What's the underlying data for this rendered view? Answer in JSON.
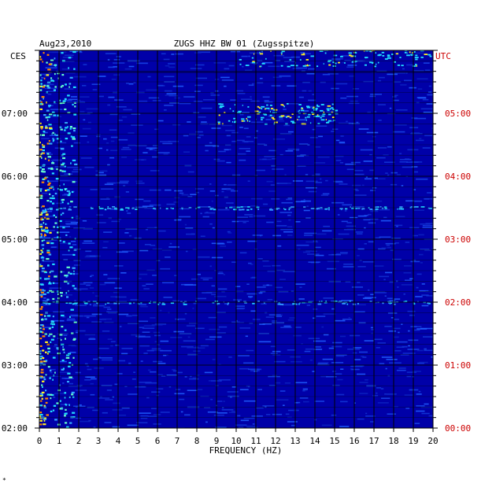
{
  "header": {
    "date": "Aug23,2010",
    "station": "ZUGS HHZ BW 01 (Zugsspitze)"
  },
  "left_axis_label": "CES",
  "right_axis_label": "UTC",
  "footnote": "*",
  "colors": {
    "background": "#0000a8",
    "left_labels": "#000000",
    "right_labels": "#cc0000",
    "grid": "#000000",
    "accent_cyan": "#22ddff",
    "accent_yellow": "#ffee22",
    "accent_red": "#ff2200"
  },
  "chart_data": {
    "type": "heatmap",
    "title": "ZUGS HHZ BW 01 (Zugsspitze)",
    "date": "Aug23,2010",
    "xlabel": "FREQUENCY (HZ)",
    "xlim": [
      0,
      20
    ],
    "x_ticks": [
      "0",
      "1",
      "2",
      "3",
      "4",
      "5",
      "6",
      "7",
      "8",
      "9",
      "10",
      "11",
      "12",
      "13",
      "14",
      "15",
      "16",
      "17",
      "18",
      "19",
      "20"
    ],
    "ylim_local": [
      "02:00",
      "08:00"
    ],
    "y_ticks_local": [
      "07:00",
      "06:00",
      "05:00",
      "04:00",
      "03:00",
      "02:00"
    ],
    "y_ticks_utc": [
      "05:00",
      "04:00",
      "03:00",
      "02:00",
      "01:00",
      "00:00"
    ],
    "left_axis": "CES",
    "right_axis": "UTC",
    "grid": true,
    "gridlines_x_hz": [
      1,
      2,
      3,
      4,
      5,
      6,
      7,
      8,
      9,
      10,
      11,
      12,
      13,
      14,
      15,
      16,
      17,
      18,
      19
    ],
    "hot_bands_hz": [
      0.2,
      0.5
    ],
    "notable_features": [
      {
        "freq_range_hz": [
          9,
          15
        ],
        "time_local": "07:00",
        "intensity": "high"
      },
      {
        "freq_range_hz": [
          0,
          20
        ],
        "time_local": "04:00",
        "intensity": "medium"
      },
      {
        "freq_range_hz": [
          0,
          20
        ],
        "time_local": "05:30",
        "intensity": "medium"
      },
      {
        "freq_range_hz": [
          10,
          20
        ],
        "time_local": "07:55",
        "intensity": "high"
      }
    ]
  }
}
